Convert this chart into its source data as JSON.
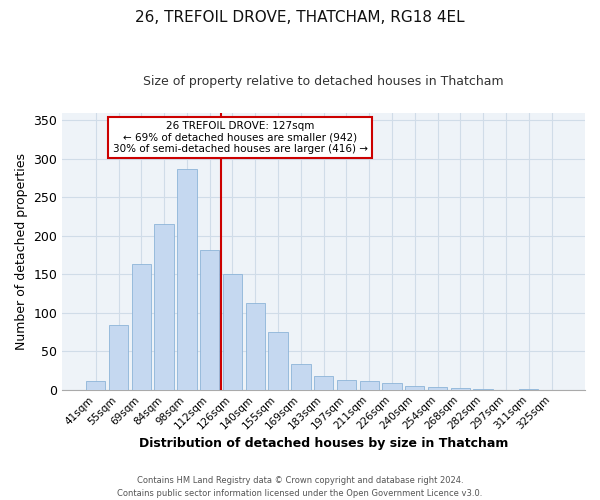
{
  "title": "26, TREFOIL DROVE, THATCHAM, RG18 4EL",
  "subtitle": "Size of property relative to detached houses in Thatcham",
  "xlabel": "Distribution of detached houses by size in Thatcham",
  "ylabel": "Number of detached properties",
  "bar_labels": [
    "41sqm",
    "55sqm",
    "69sqm",
    "84sqm",
    "98sqm",
    "112sqm",
    "126sqm",
    "140sqm",
    "155sqm",
    "169sqm",
    "183sqm",
    "197sqm",
    "211sqm",
    "226sqm",
    "240sqm",
    "254sqm",
    "268sqm",
    "282sqm",
    "297sqm",
    "311sqm",
    "325sqm"
  ],
  "bar_values": [
    11,
    84,
    164,
    216,
    287,
    182,
    150,
    113,
    75,
    34,
    18,
    13,
    11,
    9,
    5,
    3,
    2,
    1,
    0,
    1,
    0
  ],
  "bar_color": "#c5d8f0",
  "bar_edge_color": "#8db4d8",
  "vline_color": "#cc0000",
  "annotation_title": "26 TREFOIL DROVE: 127sqm",
  "annotation_line1": "← 69% of detached houses are smaller (942)",
  "annotation_line2": "30% of semi-detached houses are larger (416) →",
  "annotation_box_color": "#ffffff",
  "annotation_box_edge": "#cc0000",
  "ylim": [
    0,
    360
  ],
  "yticks": [
    0,
    50,
    100,
    150,
    200,
    250,
    300,
    350
  ],
  "grid_color": "#d0dce8",
  "footer1": "Contains HM Land Registry data © Crown copyright and database right 2024.",
  "footer2": "Contains public sector information licensed under the Open Government Licence v3.0."
}
